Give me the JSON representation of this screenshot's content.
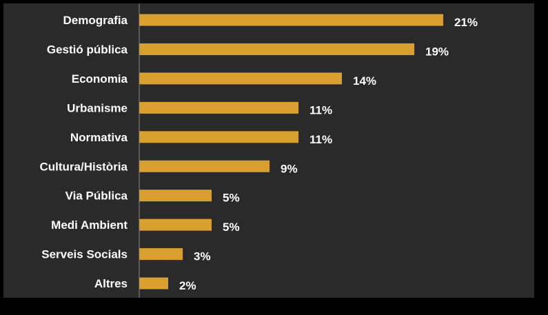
{
  "chart_data": {
    "type": "bar",
    "orientation": "horizontal",
    "categories": [
      "Demografia",
      "Gestió pública",
      "Economia",
      "Urbanisme",
      "Normativa",
      "Cultura/Història",
      "Via Pública",
      "Medi Ambient",
      "Serveis Socials",
      "Altres"
    ],
    "values": [
      21,
      19,
      14,
      11,
      11,
      9,
      5,
      5,
      3,
      2
    ],
    "value_labels": [
      "21%",
      "19%",
      "14%",
      "11%",
      "11%",
      "9%",
      "5%",
      "5%",
      "3%",
      "2%"
    ],
    "unit": "%",
    "title": "",
    "xlabel": "",
    "ylabel": "",
    "xlim": [
      0,
      25
    ],
    "grid": false,
    "legend": "none"
  },
  "colors": {
    "page_background": "#000000",
    "plot_background": "#2a2a2a",
    "bar": "#d9a030",
    "text": "#ffffff",
    "axis": "#8a8a8a"
  }
}
